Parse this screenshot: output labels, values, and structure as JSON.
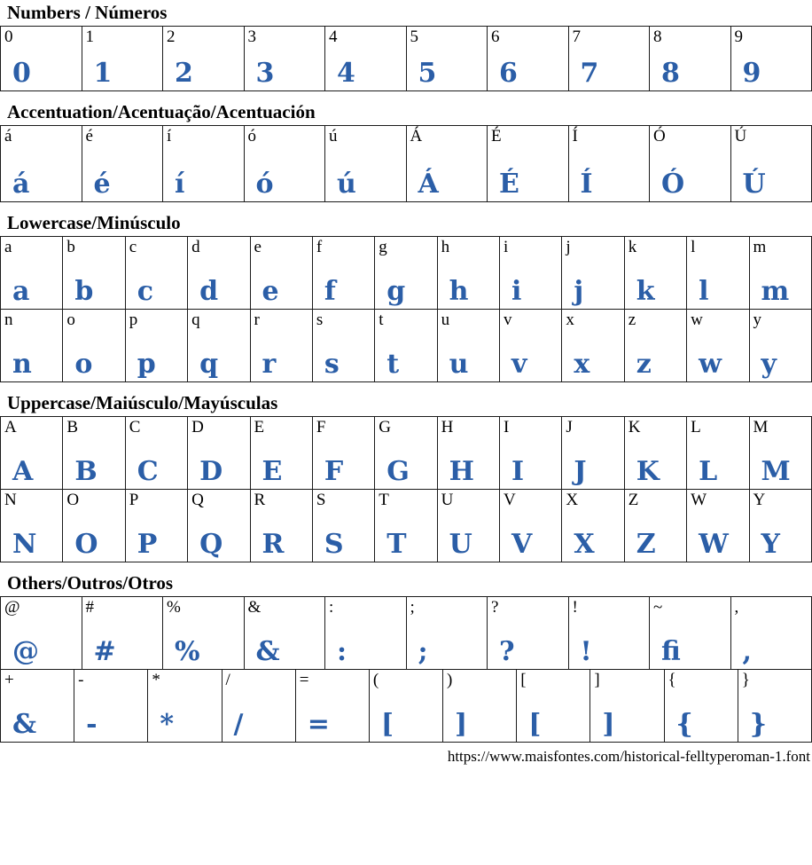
{
  "page": {
    "accent_color": "#2b5ea7",
    "border_color": "#1b1b1b",
    "footer_url": "https://www.maisfontes.com/historical-felltyperoman-1.font"
  },
  "sections": [
    {
      "id": "numbers",
      "title": "Numbers / Números",
      "rows": [
        [
          {
            "label": "0",
            "glyph": "0"
          },
          {
            "label": "1",
            "glyph": "1"
          },
          {
            "label": "2",
            "glyph": "2"
          },
          {
            "label": "3",
            "glyph": "3"
          },
          {
            "label": "4",
            "glyph": "4"
          },
          {
            "label": "5",
            "glyph": "5"
          },
          {
            "label": "6",
            "glyph": "6"
          },
          {
            "label": "7",
            "glyph": "7"
          },
          {
            "label": "8",
            "glyph": "8"
          },
          {
            "label": "9",
            "glyph": "9"
          }
        ]
      ]
    },
    {
      "id": "accentuation",
      "title": "Accentuation/Acentuação/Acentuación",
      "rows": [
        [
          {
            "label": "á",
            "glyph": "á"
          },
          {
            "label": "é",
            "glyph": "é"
          },
          {
            "label": "í",
            "glyph": "í"
          },
          {
            "label": "ó",
            "glyph": "ó"
          },
          {
            "label": "ú",
            "glyph": "ú"
          },
          {
            "label": "Á",
            "glyph": "Á"
          },
          {
            "label": "É",
            "glyph": "É"
          },
          {
            "label": "Í",
            "glyph": "Í"
          },
          {
            "label": "Ó",
            "glyph": "Ó"
          },
          {
            "label": "Ú",
            "glyph": "Ú"
          }
        ]
      ]
    },
    {
      "id": "lowercase",
      "title": "Lowercase/Minúsculo",
      "rows": [
        [
          {
            "label": "a",
            "glyph": "a"
          },
          {
            "label": "b",
            "glyph": "b"
          },
          {
            "label": "c",
            "glyph": "c"
          },
          {
            "label": "d",
            "glyph": "d"
          },
          {
            "label": "e",
            "glyph": "e"
          },
          {
            "label": "f",
            "glyph": "f"
          },
          {
            "label": "g",
            "glyph": "g"
          },
          {
            "label": "h",
            "glyph": "h"
          },
          {
            "label": "i",
            "glyph": "i"
          },
          {
            "label": "j",
            "glyph": "j"
          },
          {
            "label": "k",
            "glyph": "k"
          },
          {
            "label": "l",
            "glyph": "l"
          },
          {
            "label": "m",
            "glyph": "m"
          }
        ],
        [
          {
            "label": "n",
            "glyph": "n"
          },
          {
            "label": "o",
            "glyph": "o"
          },
          {
            "label": "p",
            "glyph": "p"
          },
          {
            "label": "q",
            "glyph": "q"
          },
          {
            "label": "r",
            "glyph": "r"
          },
          {
            "label": "s",
            "glyph": "s"
          },
          {
            "label": "t",
            "glyph": "t"
          },
          {
            "label": "u",
            "glyph": "u"
          },
          {
            "label": "v",
            "glyph": "v"
          },
          {
            "label": "x",
            "glyph": "x"
          },
          {
            "label": "z",
            "glyph": "z"
          },
          {
            "label": "w",
            "glyph": "w"
          },
          {
            "label": "y",
            "glyph": "y"
          }
        ]
      ]
    },
    {
      "id": "uppercase",
      "title": "Uppercase/Maiúsculo/Mayúsculas",
      "rows": [
        [
          {
            "label": "A",
            "glyph": "A"
          },
          {
            "label": "B",
            "glyph": "B"
          },
          {
            "label": "C",
            "glyph": "C"
          },
          {
            "label": "D",
            "glyph": "D"
          },
          {
            "label": "E",
            "glyph": "E"
          },
          {
            "label": "F",
            "glyph": "F"
          },
          {
            "label": "G",
            "glyph": "G"
          },
          {
            "label": "H",
            "glyph": "H"
          },
          {
            "label": "I",
            "glyph": "I"
          },
          {
            "label": "J",
            "glyph": "J"
          },
          {
            "label": "K",
            "glyph": "K"
          },
          {
            "label": "L",
            "glyph": "L"
          },
          {
            "label": "M",
            "glyph": "M"
          }
        ],
        [
          {
            "label": "N",
            "glyph": "N"
          },
          {
            "label": "O",
            "glyph": "O"
          },
          {
            "label": "P",
            "glyph": "P"
          },
          {
            "label": "Q",
            "glyph": "Q"
          },
          {
            "label": "R",
            "glyph": "R"
          },
          {
            "label": "S",
            "glyph": "S"
          },
          {
            "label": "T",
            "glyph": "T"
          },
          {
            "label": "U",
            "glyph": "U"
          },
          {
            "label": "V",
            "glyph": "V"
          },
          {
            "label": "X",
            "glyph": "X"
          },
          {
            "label": "Z",
            "glyph": "Z"
          },
          {
            "label": "W",
            "glyph": "W"
          },
          {
            "label": "Y",
            "glyph": "Y"
          }
        ]
      ]
    },
    {
      "id": "others",
      "title": "Others/Outros/Otros",
      "rows": [
        [
          {
            "label": "@",
            "glyph": "@"
          },
          {
            "label": "#",
            "glyph": "#"
          },
          {
            "label": "%",
            "glyph": "%"
          },
          {
            "label": "&",
            "glyph": "&"
          },
          {
            "label": ":",
            "glyph": ":"
          },
          {
            "label": ";",
            "glyph": ";"
          },
          {
            "label": "?",
            "glyph": "?"
          },
          {
            "label": "!",
            "glyph": "!"
          },
          {
            "label": "~",
            "glyph": "fi"
          },
          {
            "label": ",",
            "glyph": ","
          }
        ],
        [
          {
            "label": "+",
            "glyph": "&"
          },
          {
            "label": "-",
            "glyph": "-"
          },
          {
            "label": "*",
            "glyph": "*"
          },
          {
            "label": "/",
            "glyph": "/"
          },
          {
            "label": "=",
            "glyph": "="
          },
          {
            "label": "(",
            "glyph": "["
          },
          {
            "label": ")",
            "glyph": "]"
          },
          {
            "label": "[",
            "glyph": "["
          },
          {
            "label": "]",
            "glyph": "]"
          },
          {
            "label": "{",
            "glyph": "{"
          },
          {
            "label": "}",
            "glyph": "}"
          }
        ]
      ]
    }
  ]
}
